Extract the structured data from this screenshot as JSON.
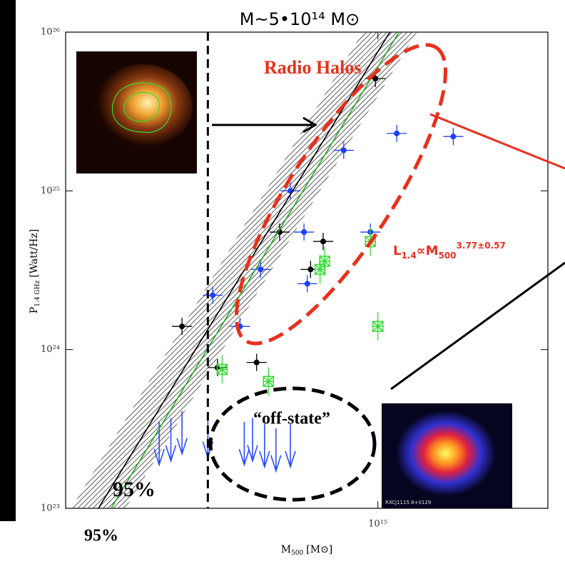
{
  "chart_data": {
    "type": "scatter",
    "title": "M~5•10¹⁴ M⊙",
    "xlabel": {
      "symbol": "M",
      "subscript": "500",
      "unit": "[M⊙]"
    },
    "ylabel": {
      "symbol": "P",
      "subscript": "1.4 GHz",
      "unit": "[Watt/Hz]"
    },
    "xscale": "log",
    "yscale": "log",
    "xlim": [
      280000000000000.0,
      2000000000000000.0
    ],
    "ylim": [
      1e+23,
      1e+26
    ],
    "xticks": [
      {
        "value": 1000000000000000.0,
        "label": "10¹⁵"
      }
    ],
    "yticks": [
      {
        "value": 1e+23,
        "label": "10²³"
      },
      {
        "value": 1e+24,
        "label": "10²⁴"
      },
      {
        "value": 1e+25,
        "label": "10²⁵"
      },
      {
        "value": 1e+26,
        "label": "10²⁶"
      }
    ],
    "vline": 500000000000000.0,
    "series": [
      {
        "color": "#000000",
        "marker": "dot",
        "x": [
          990000000000000.0,
          450000000000000.0,
          670000000000000.0,
          800000000000000.0,
          760000000000000.0,
          610000000000000.0,
          520000000000000.0
        ],
        "values": [
          5.1e+25,
          1.4e+24,
          5.5e+24,
          4.8e+24,
          3.2e+24,
          8.3e+23,
          7.7e+23
        ]
      },
      {
        "color": "#1f3fff",
        "marker": "dot",
        "x": [
          1080000000000000.0,
          1360000000000000.0,
          870000000000000.0,
          700000000000000.0,
          740000000000000.0,
          970000000000000.0,
          620000000000000.0,
          750000000000000.0,
          510000000000000.0,
          570000000000000.0
        ],
        "values": [
          2.3e+25,
          2.2e+25,
          1.8e+25,
          1e+25,
          5.5e+24,
          5.5e+24,
          3.2e+24,
          2.6e+24,
          2.2e+24,
          1.4e+24
        ]
      },
      {
        "color": "#33dd33",
        "marker": "star",
        "x": [
          970000000000000.0,
          805000000000000.0,
          790000000000000.0,
          1000000000000000.0,
          640000000000000.0,
          530000000000000.0
        ],
        "values": [
          4.8e+24,
          3.6e+24,
          3.2e+24,
          1.4e+24,
          6.3e+23,
          7.5e+23
        ]
      },
      {
        "color": "#2a4cff",
        "marker": "arrow",
        "x": [
          410000000000000.0,
          430000000000000.0,
          450000000000000.0,
          500000000000000.0,
          580000000000000.0,
          600000000000000.0,
          630000000000000.0,
          660000000000000.0,
          700000000000000.0
        ],
        "values": [
          3.5e+23,
          3.7e+23,
          4.1e+23,
          3.9e+23,
          3.5e+23,
          3.7e+23,
          3.4e+23,
          3.2e+23,
          3.4e+23
        ]
      },
      {
        "color": "#000000",
        "marker": "line",
        "band": true,
        "x": [
          320000000000000.0,
          1050000000000000.0
        ],
        "values": [
          1e+23,
          1e+26
        ]
      },
      {
        "color": "#22aa22",
        "marker": "line",
        "x": [
          337000000000000.0,
          1090000000000000.0
        ],
        "values": [
          1e+23,
          1e+26
        ]
      }
    ],
    "annotations": {
      "radio_halos": "Radio Halos",
      "off_state": "“off-state”",
      "ci_inner": "95%",
      "ci_outer": "95%",
      "fit": {
        "base": "L",
        "sub1": "1.4",
        "mid": "∝M",
        "sub2": "500",
        "sup": "3.77±0.57"
      },
      "inset_label": "RXCJ1115.8+0129"
    }
  }
}
